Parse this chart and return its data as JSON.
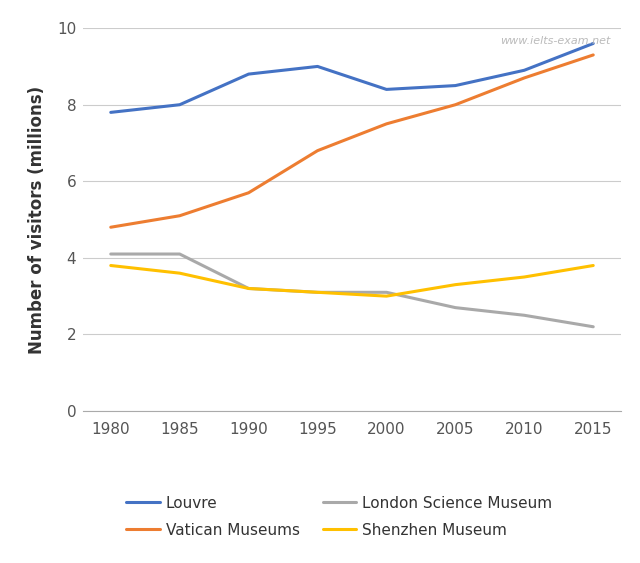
{
  "years": [
    1980,
    1985,
    1990,
    1995,
    2000,
    2005,
    2010,
    2015
  ],
  "series": {
    "Louvre": [
      7.8,
      8.0,
      8.8,
      9.0,
      8.4,
      8.5,
      8.9,
      9.6
    ],
    "Vatican Museums": [
      4.8,
      5.1,
      5.7,
      6.8,
      7.5,
      8.0,
      8.7,
      9.3
    ],
    "London Science Museum": [
      4.1,
      4.1,
      3.2,
      3.1,
      3.1,
      2.7,
      2.5,
      2.2
    ],
    "Shenzhen Museum": [
      3.8,
      3.6,
      3.2,
      3.1,
      3.0,
      3.3,
      3.5,
      3.8
    ]
  },
  "colors": {
    "Louvre": "#4472C4",
    "Vatican Museums": "#ED7D31",
    "London Science Museum": "#A9A9A9",
    "Shenzhen Museum": "#FFC000"
  },
  "ylabel": "Number of visitors (millions)",
  "ylim": [
    0,
    10
  ],
  "yticks": [
    0,
    2,
    4,
    6,
    8,
    10
  ],
  "xlim": [
    1978,
    2017
  ],
  "xticks": [
    1980,
    1985,
    1990,
    1995,
    2000,
    2005,
    2010,
    2015
  ],
  "watermark": "www.ielts-exam.net",
  "legend_order": [
    "Louvre",
    "Vatican Museums",
    "London Science Museum",
    "Shenzhen Museum"
  ],
  "line_width": 2.2,
  "grid_color": "#CCCCCC",
  "background_color": "#FFFFFF",
  "legend_fontsize": 11,
  "ylabel_fontsize": 12,
  "tick_fontsize": 11
}
